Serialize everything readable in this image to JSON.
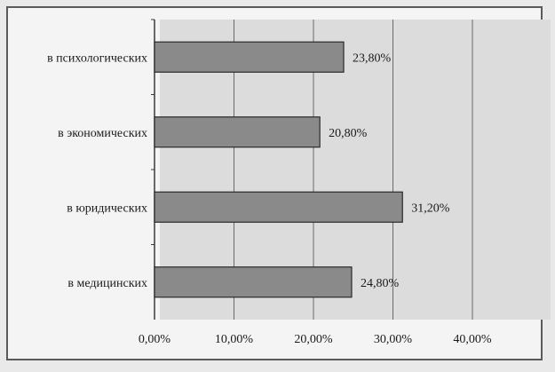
{
  "chart_data": {
    "type": "bar",
    "orientation": "horizontal",
    "categories": [
      "в психологических",
      "в экономических",
      "в юридических",
      "в медицинских"
    ],
    "values": [
      23.8,
      20.8,
      31.2,
      24.8
    ],
    "value_labels": [
      "23,80%",
      "20,80%",
      "31,20%",
      "24,80%"
    ],
    "xlim": [
      0,
      40
    ],
    "x_ticks": [
      0,
      10,
      20,
      30,
      40
    ],
    "x_tick_labels": [
      "0,00%",
      "10,00%",
      "20,00%",
      "30,00%",
      "40,00%"
    ],
    "grid": "vertical",
    "bar_color": "#8a8a8a",
    "title": "",
    "xlabel": "",
    "ylabel": ""
  }
}
